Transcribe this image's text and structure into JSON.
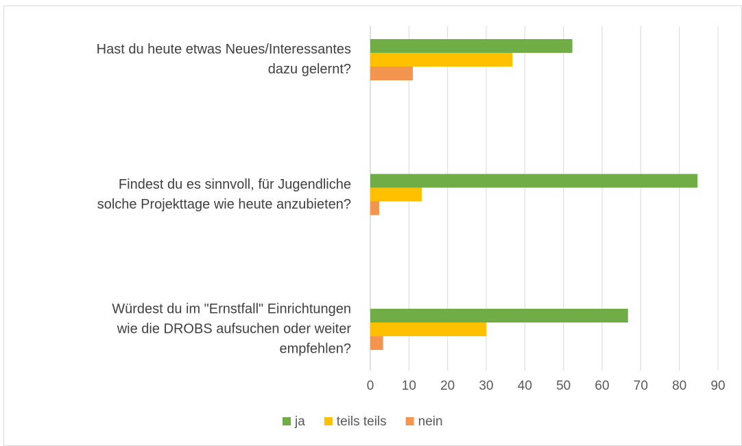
{
  "chart_data": {
    "type": "bar",
    "orientation": "horizontal",
    "categories": [
      "Hast du heute etwas Neues/Interessantes\ndazu gelernt?",
      "Findest du es sinnvoll, für Jugendliche\nsolche Projekttage wie heute anzubieten?",
      "Würdest du im \"Ernstfall\" Einrichtungen\nwie die DROBS aufsuchen oder weiter\nempfehlen?"
    ],
    "series": [
      {
        "name": "ja",
        "color": "#70ad47",
        "values": [
          52.3,
          84.7,
          66.7
        ]
      },
      {
        "name": "teils teils",
        "color": "#ffc000",
        "values": [
          36.8,
          13.3,
          30
        ]
      },
      {
        "name": "nein",
        "color": "#f4954f",
        "values": [
          11,
          2.3,
          3.3
        ]
      }
    ],
    "xlim": [
      0,
      90
    ],
    "xticks": [
      0,
      10,
      20,
      30,
      40,
      50,
      60,
      70,
      80,
      90
    ],
    "grid": true,
    "legend": "bottom"
  }
}
